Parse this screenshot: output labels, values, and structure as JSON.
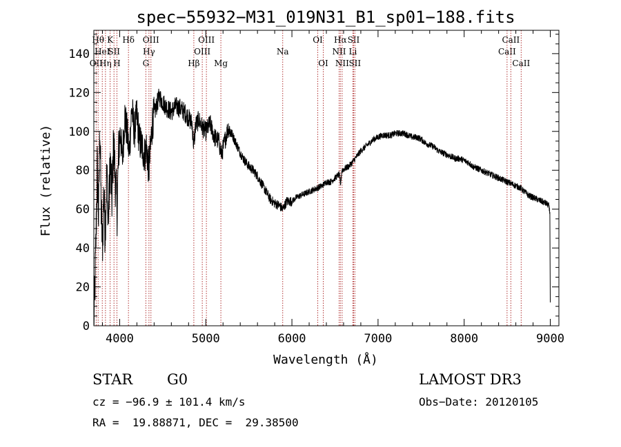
{
  "chart_data": {
    "type": "line",
    "title": "spec−55932−M31_019N31_B1_sp01−188.fits",
    "xlabel": "Wavelength (Å)",
    "ylabel": "Flux (relative)",
    "xlim": [
      3700,
      9100
    ],
    "ylim": [
      0,
      152
    ],
    "xticks": [
      4000,
      5000,
      6000,
      7000,
      8000,
      9000
    ],
    "yticks": [
      0,
      20,
      40,
      60,
      80,
      100,
      120,
      140
    ],
    "series": [
      {
        "name": "spectrum",
        "color": "#000000",
        "anchors": [
          [
            3700,
            2
          ],
          [
            3712,
            18
          ],
          [
            3725,
            45
          ],
          [
            3740,
            82
          ],
          [
            3755,
            55
          ],
          [
            3770,
            105
          ],
          [
            3785,
            60
          ],
          [
            3800,
            40
          ],
          [
            3815,
            70
          ],
          [
            3830,
            48
          ],
          [
            3850,
            78
          ],
          [
            3870,
            55
          ],
          [
            3890,
            85
          ],
          [
            3910,
            65
          ],
          [
            3930,
            95
          ],
          [
            3950,
            75
          ],
          [
            3970,
            60
          ],
          [
            3990,
            92
          ],
          [
            4010,
            100
          ],
          [
            4030,
            85
          ],
          [
            4060,
            108
          ],
          [
            4090,
            98
          ],
          [
            4110,
            88
          ],
          [
            4140,
            112
          ],
          [
            4170,
            100
          ],
          [
            4200,
            108
          ],
          [
            4230,
            95
          ],
          [
            4260,
            92
          ],
          [
            4290,
            88
          ],
          [
            4310,
            92
          ],
          [
            4340,
            80
          ],
          [
            4380,
            105
          ],
          [
            4420,
            112
          ],
          [
            4460,
            118
          ],
          [
            4500,
            115
          ],
          [
            4550,
            112
          ],
          [
            4600,
            110
          ],
          [
            4650,
            113
          ],
          [
            4700,
            112
          ],
          [
            4750,
            110
          ],
          [
            4800,
            107
          ],
          [
            4840,
            104
          ],
          [
            4861,
            92
          ],
          [
            4880,
            103
          ],
          [
            4920,
            106
          ],
          [
            4960,
            102
          ],
          [
            5000,
            100
          ],
          [
            5050,
            104
          ],
          [
            5100,
            97
          ],
          [
            5150,
            95
          ],
          [
            5183,
            88
          ],
          [
            5220,
            95
          ],
          [
            5260,
            102
          ],
          [
            5300,
            99
          ],
          [
            5350,
            94
          ],
          [
            5400,
            89
          ],
          [
            5450,
            85
          ],
          [
            5500,
            82
          ],
          [
            5550,
            80
          ],
          [
            5600,
            77
          ],
          [
            5650,
            73
          ],
          [
            5700,
            69
          ],
          [
            5750,
            65
          ],
          [
            5800,
            63
          ],
          [
            5850,
            62
          ],
          [
            5893,
            60
          ],
          [
            5940,
            64
          ],
          [
            6000,
            64
          ],
          [
            6050,
            66
          ],
          [
            6100,
            67
          ],
          [
            6150,
            68
          ],
          [
            6200,
            69
          ],
          [
            6250,
            70
          ],
          [
            6300,
            71
          ],
          [
            6350,
            72
          ],
          [
            6400,
            74
          ],
          [
            6450,
            74
          ],
          [
            6500,
            76
          ],
          [
            6550,
            78
          ],
          [
            6563,
            72
          ],
          [
            6580,
            80
          ],
          [
            6620,
            81
          ],
          [
            6660,
            82
          ],
          [
            6700,
            84
          ],
          [
            6750,
            87
          ],
          [
            6800,
            90
          ],
          [
            6850,
            92
          ],
          [
            6900,
            94
          ],
          [
            6950,
            96
          ],
          [
            7000,
            97
          ],
          [
            7050,
            98
          ],
          [
            7100,
            98
          ],
          [
            7150,
            98
          ],
          [
            7200,
            99
          ],
          [
            7250,
            99
          ],
          [
            7300,
            99
          ],
          [
            7350,
            98
          ],
          [
            7400,
            97
          ],
          [
            7450,
            97
          ],
          [
            7500,
            96
          ],
          [
            7550,
            94
          ],
          [
            7600,
            93
          ],
          [
            7650,
            92
          ],
          [
            7700,
            90
          ],
          [
            7750,
            89
          ],
          [
            7800,
            88
          ],
          [
            7850,
            87
          ],
          [
            7900,
            86
          ],
          [
            7950,
            86
          ],
          [
            8000,
            85
          ],
          [
            8050,
            84
          ],
          [
            8100,
            82
          ],
          [
            8150,
            81
          ],
          [
            8200,
            80
          ],
          [
            8250,
            79
          ],
          [
            8300,
            78
          ],
          [
            8350,
            77
          ],
          [
            8400,
            76
          ],
          [
            8450,
            75
          ],
          [
            8500,
            74
          ],
          [
            8550,
            73
          ],
          [
            8600,
            72
          ],
          [
            8650,
            71
          ],
          [
            8700,
            69
          ],
          [
            8750,
            67
          ],
          [
            8800,
            66
          ],
          [
            8850,
            65
          ],
          [
            8900,
            64
          ],
          [
            8950,
            63
          ],
          [
            8980,
            62
          ],
          [
            8995,
            58
          ],
          [
            9000,
            12
          ]
        ]
      }
    ],
    "line_markers": [
      {
        "wl": 3727,
        "label": "OII",
        "row": 3
      },
      {
        "wl": 3750,
        "label": "Hθ",
        "row": 1
      },
      {
        "wl": 3798,
        "label": "HeI",
        "row": 2
      },
      {
        "wl": 3835,
        "label": "Hη",
        "row": 3
      },
      {
        "wl": 3889,
        "label": "K",
        "row": 1
      },
      {
        "wl": 3934,
        "label": "SII",
        "row": 2
      },
      {
        "wl": 3968,
        "label": "H",
        "row": 3
      },
      {
        "wl": 4102,
        "label": "Hδ",
        "row": 1
      },
      {
        "wl": 4304,
        "label": "G",
        "row": 3
      },
      {
        "wl": 4340,
        "label": "Hγ",
        "row": 2
      },
      {
        "wl": 4363,
        "label": "OIII",
        "row": 1
      },
      {
        "wl": 4861,
        "label": "Hβ",
        "row": 3
      },
      {
        "wl": 4959,
        "label": "OIII",
        "row": 2
      },
      {
        "wl": 5007,
        "label": "OIII",
        "row": 1
      },
      {
        "wl": 5175,
        "label": "Mg",
        "row": 3
      },
      {
        "wl": 5893,
        "label": "Na",
        "row": 2
      },
      {
        "wl": 6300,
        "label": "OI",
        "row": 1
      },
      {
        "wl": 6364,
        "label": "OI",
        "row": 3
      },
      {
        "wl": 6548,
        "label": "NII",
        "row": 2
      },
      {
        "wl": 6563,
        "label": "Hα",
        "row": 1
      },
      {
        "wl": 6583,
        "label": "NII",
        "row": 3
      },
      {
        "wl": 6708,
        "label": "Li",
        "row": 2
      },
      {
        "wl": 6716,
        "label": "SII",
        "row": 1
      },
      {
        "wl": 6731,
        "label": "SII",
        "row": 3
      },
      {
        "wl": 8498,
        "label": "CaII",
        "row": 2
      },
      {
        "wl": 8542,
        "label": "CaII",
        "row": 1
      },
      {
        "wl": 8662,
        "label": "CaII",
        "row": 3
      }
    ]
  },
  "footer": {
    "object_class": "STAR",
    "subclass": "G0",
    "survey": "LAMOST DR3",
    "cz": "cz = −96.9 ± 101.4 km/s",
    "obs_date": "Obs−Date: 20120105",
    "coords": "RA =  19.88871, DEC =  29.38500"
  }
}
